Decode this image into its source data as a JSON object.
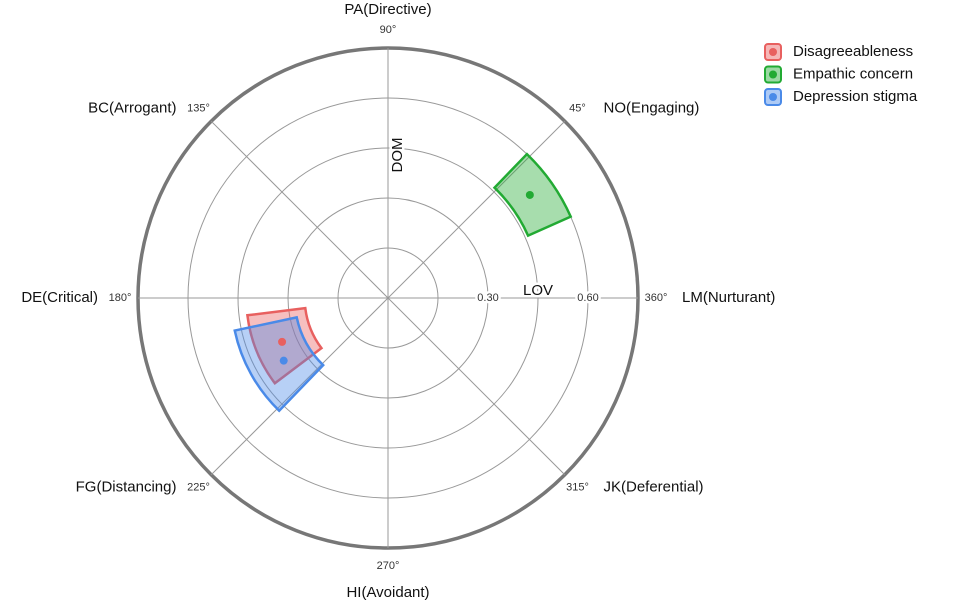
{
  "chart_data": {
    "type": "circumplex",
    "x_label": "LOV",
    "y_label": "DOM",
    "octants": [
      "LM(Nurturant)",
      "NO(Engaging)",
      "PA(Directive)",
      "BC(Arrogant)",
      "DE(Critical)",
      "FG(Distancing)",
      "HI(Avoidant)",
      "JK(Deferential)"
    ],
    "angle_ticks": [
      {
        "value": 360,
        "label": "360°"
      },
      {
        "value": 45,
        "label": "45°"
      },
      {
        "value": 90,
        "label": "90°"
      },
      {
        "value": 135,
        "label": "135°"
      },
      {
        "value": 180,
        "label": "180°"
      },
      {
        "value": 225,
        "label": "225°"
      },
      {
        "value": 270,
        "label": "270°"
      },
      {
        "value": 315,
        "label": "315°"
      }
    ],
    "rlim": [
      0,
      0.75
    ],
    "rgrid": [
      0.15,
      0.3,
      0.45,
      0.6,
      0.75
    ],
    "rticks": [
      {
        "value": 0.3,
        "label": "0.30"
      },
      {
        "value": 0.6,
        "label": "0.60"
      }
    ],
    "series": [
      {
        "name": "Disagreeableness",
        "color": "#e8605f",
        "angle": 202.5,
        "amplitude": 0.344,
        "angle_range": [
          187,
          217
        ],
        "amplitude_range": [
          0.25,
          0.425
        ]
      },
      {
        "name": "Empathic concern",
        "color": "#22aa33",
        "angle": 36,
        "amplitude": 0.526,
        "angle_range": [
          24,
          46
        ],
        "amplitude_range": [
          0.46,
          0.6
        ]
      },
      {
        "name": "Depression stigma",
        "color": "#4a8ae8",
        "angle": 211,
        "amplitude": 0.365,
        "angle_range": [
          192,
          226
        ],
        "amplitude_range": [
          0.28,
          0.47
        ]
      }
    ]
  }
}
